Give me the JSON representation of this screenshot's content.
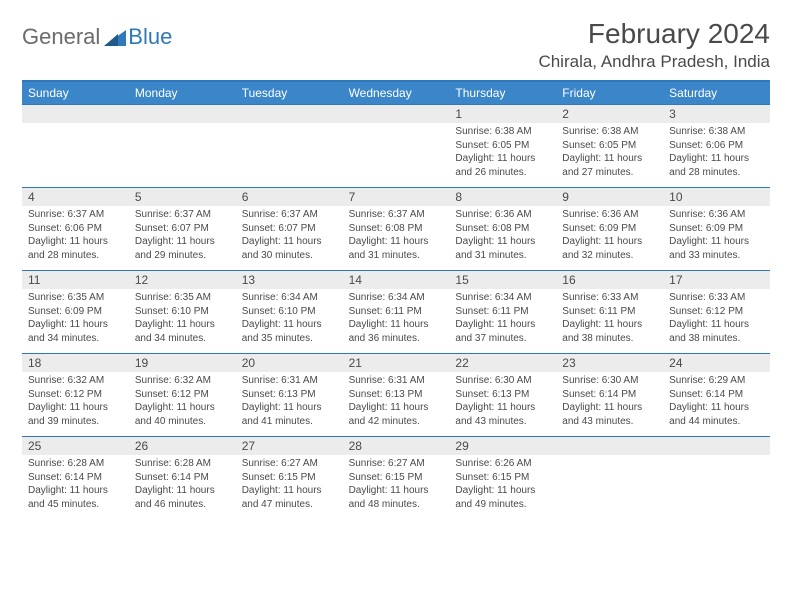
{
  "logo": {
    "general": "General",
    "blue": "Blue"
  },
  "title": "February 2024",
  "location": "Chirala, Andhra Pradesh, India",
  "colors": {
    "header_blue": "#3a86c8",
    "border_blue": "#2f78b9",
    "daynum_bg": "#ececec",
    "text": "#4a4a4a"
  },
  "days_of_week": [
    "Sunday",
    "Monday",
    "Tuesday",
    "Wednesday",
    "Thursday",
    "Friday",
    "Saturday"
  ],
  "weeks": [
    [
      {
        "n": "",
        "sr": "",
        "ss": "",
        "dl": ""
      },
      {
        "n": "",
        "sr": "",
        "ss": "",
        "dl": ""
      },
      {
        "n": "",
        "sr": "",
        "ss": "",
        "dl": ""
      },
      {
        "n": "",
        "sr": "",
        "ss": "",
        "dl": ""
      },
      {
        "n": "1",
        "sr": "Sunrise: 6:38 AM",
        "ss": "Sunset: 6:05 PM",
        "dl": "Daylight: 11 hours and 26 minutes."
      },
      {
        "n": "2",
        "sr": "Sunrise: 6:38 AM",
        "ss": "Sunset: 6:05 PM",
        "dl": "Daylight: 11 hours and 27 minutes."
      },
      {
        "n": "3",
        "sr": "Sunrise: 6:38 AM",
        "ss": "Sunset: 6:06 PM",
        "dl": "Daylight: 11 hours and 28 minutes."
      }
    ],
    [
      {
        "n": "4",
        "sr": "Sunrise: 6:37 AM",
        "ss": "Sunset: 6:06 PM",
        "dl": "Daylight: 11 hours and 28 minutes."
      },
      {
        "n": "5",
        "sr": "Sunrise: 6:37 AM",
        "ss": "Sunset: 6:07 PM",
        "dl": "Daylight: 11 hours and 29 minutes."
      },
      {
        "n": "6",
        "sr": "Sunrise: 6:37 AM",
        "ss": "Sunset: 6:07 PM",
        "dl": "Daylight: 11 hours and 30 minutes."
      },
      {
        "n": "7",
        "sr": "Sunrise: 6:37 AM",
        "ss": "Sunset: 6:08 PM",
        "dl": "Daylight: 11 hours and 31 minutes."
      },
      {
        "n": "8",
        "sr": "Sunrise: 6:36 AM",
        "ss": "Sunset: 6:08 PM",
        "dl": "Daylight: 11 hours and 31 minutes."
      },
      {
        "n": "9",
        "sr": "Sunrise: 6:36 AM",
        "ss": "Sunset: 6:09 PM",
        "dl": "Daylight: 11 hours and 32 minutes."
      },
      {
        "n": "10",
        "sr": "Sunrise: 6:36 AM",
        "ss": "Sunset: 6:09 PM",
        "dl": "Daylight: 11 hours and 33 minutes."
      }
    ],
    [
      {
        "n": "11",
        "sr": "Sunrise: 6:35 AM",
        "ss": "Sunset: 6:09 PM",
        "dl": "Daylight: 11 hours and 34 minutes."
      },
      {
        "n": "12",
        "sr": "Sunrise: 6:35 AM",
        "ss": "Sunset: 6:10 PM",
        "dl": "Daylight: 11 hours and 34 minutes."
      },
      {
        "n": "13",
        "sr": "Sunrise: 6:34 AM",
        "ss": "Sunset: 6:10 PM",
        "dl": "Daylight: 11 hours and 35 minutes."
      },
      {
        "n": "14",
        "sr": "Sunrise: 6:34 AM",
        "ss": "Sunset: 6:11 PM",
        "dl": "Daylight: 11 hours and 36 minutes."
      },
      {
        "n": "15",
        "sr": "Sunrise: 6:34 AM",
        "ss": "Sunset: 6:11 PM",
        "dl": "Daylight: 11 hours and 37 minutes."
      },
      {
        "n": "16",
        "sr": "Sunrise: 6:33 AM",
        "ss": "Sunset: 6:11 PM",
        "dl": "Daylight: 11 hours and 38 minutes."
      },
      {
        "n": "17",
        "sr": "Sunrise: 6:33 AM",
        "ss": "Sunset: 6:12 PM",
        "dl": "Daylight: 11 hours and 38 minutes."
      }
    ],
    [
      {
        "n": "18",
        "sr": "Sunrise: 6:32 AM",
        "ss": "Sunset: 6:12 PM",
        "dl": "Daylight: 11 hours and 39 minutes."
      },
      {
        "n": "19",
        "sr": "Sunrise: 6:32 AM",
        "ss": "Sunset: 6:12 PM",
        "dl": "Daylight: 11 hours and 40 minutes."
      },
      {
        "n": "20",
        "sr": "Sunrise: 6:31 AM",
        "ss": "Sunset: 6:13 PM",
        "dl": "Daylight: 11 hours and 41 minutes."
      },
      {
        "n": "21",
        "sr": "Sunrise: 6:31 AM",
        "ss": "Sunset: 6:13 PM",
        "dl": "Daylight: 11 hours and 42 minutes."
      },
      {
        "n": "22",
        "sr": "Sunrise: 6:30 AM",
        "ss": "Sunset: 6:13 PM",
        "dl": "Daylight: 11 hours and 43 minutes."
      },
      {
        "n": "23",
        "sr": "Sunrise: 6:30 AM",
        "ss": "Sunset: 6:14 PM",
        "dl": "Daylight: 11 hours and 43 minutes."
      },
      {
        "n": "24",
        "sr": "Sunrise: 6:29 AM",
        "ss": "Sunset: 6:14 PM",
        "dl": "Daylight: 11 hours and 44 minutes."
      }
    ],
    [
      {
        "n": "25",
        "sr": "Sunrise: 6:28 AM",
        "ss": "Sunset: 6:14 PM",
        "dl": "Daylight: 11 hours and 45 minutes."
      },
      {
        "n": "26",
        "sr": "Sunrise: 6:28 AM",
        "ss": "Sunset: 6:14 PM",
        "dl": "Daylight: 11 hours and 46 minutes."
      },
      {
        "n": "27",
        "sr": "Sunrise: 6:27 AM",
        "ss": "Sunset: 6:15 PM",
        "dl": "Daylight: 11 hours and 47 minutes."
      },
      {
        "n": "28",
        "sr": "Sunrise: 6:27 AM",
        "ss": "Sunset: 6:15 PM",
        "dl": "Daylight: 11 hours and 48 minutes."
      },
      {
        "n": "29",
        "sr": "Sunrise: 6:26 AM",
        "ss": "Sunset: 6:15 PM",
        "dl": "Daylight: 11 hours and 49 minutes."
      },
      {
        "n": "",
        "sr": "",
        "ss": "",
        "dl": ""
      },
      {
        "n": "",
        "sr": "",
        "ss": "",
        "dl": ""
      }
    ]
  ]
}
